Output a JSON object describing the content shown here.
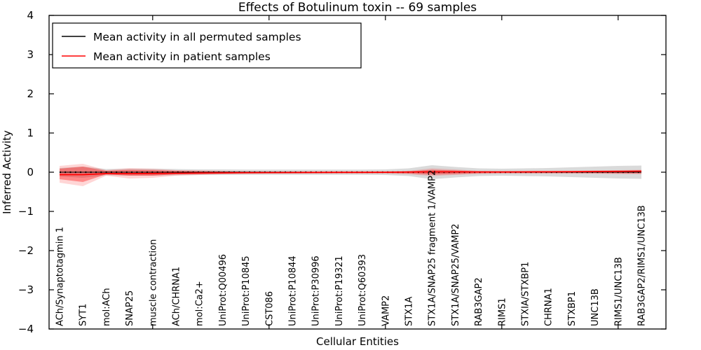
{
  "chart_data": {
    "type": "line",
    "title": "Effects of Botulinum toxin -- 69 samples",
    "xlabel": "Cellular Entities",
    "ylabel": "Inferred Activity",
    "ylim": [
      -4,
      4
    ],
    "yticks": [
      4,
      3,
      2,
      1,
      0,
      -1,
      -2,
      -3,
      -4
    ],
    "grid": false,
    "legend_position": "upper left",
    "legend": {
      "items": [
        {
          "label": "Mean activity in all permuted samples",
          "color": "#000000"
        },
        {
          "label": "Mean activity in patient samples",
          "color": "#ff0000"
        }
      ]
    },
    "categories": [
      "ACh/Synaptotagmin 1",
      "SYT1",
      "mol:ACh",
      "SNAP25",
      "muscle contraction",
      "ACh/CHRNA1",
      "mol:Ca2+",
      "UniProt:Q00496",
      "UniProt:P10845",
      "CST086",
      "UniProt:P10844",
      "UniProt:P30996",
      "UniProt:P19321",
      "UniProt:Q60393",
      "VAMP2",
      "STX1A",
      "STX1A/SNAP25 fragment 1/VAMP2",
      "STX1A/SNAP25/VAMP2",
      "RAB3GAP2",
      "RIMS1",
      "STXIA/STXBP1",
      "CHRNA1",
      "STXBP1",
      "UNC13B",
      "RIMS1/UNC13B",
      "RAB3GAP2/RIMS1/UNC13B"
    ],
    "x_major_tick_indices": [
      4,
      9,
      14,
      19,
      24
    ],
    "series": [
      {
        "name": "Mean activity in all permuted samples",
        "color": "#000000",
        "style": "solid-with-dots",
        "values": [
          0,
          0,
          0,
          0,
          0,
          0,
          0,
          0,
          0,
          0,
          0,
          0,
          0,
          0,
          0,
          0,
          0,
          0,
          0,
          0,
          0,
          0,
          0,
          0,
          0,
          0
        ]
      },
      {
        "name": "Mean activity in patient samples",
        "color": "#ff0000",
        "style": "solid",
        "values": [
          -0.063,
          -0.063,
          -0.036,
          -0.036,
          -0.032,
          -0.027,
          -0.021,
          -0.018,
          -0.014,
          -0.011,
          -0.009,
          -0.007,
          -0.005,
          -0.004,
          -0.002,
          0.004,
          0.009,
          0.009,
          0.007,
          0.007,
          0.009,
          0.011,
          0.014,
          0.018,
          0.021,
          0.027
        ]
      }
    ],
    "bands": [
      {
        "name": "permuted-samples-range",
        "color": "rgba(122,122,122,0.28)",
        "upper": [
          0.107,
          0.143,
          0.08,
          0.089,
          0.089,
          0.08,
          0.071,
          0.071,
          0.068,
          0.068,
          0.068,
          0.068,
          0.068,
          0.068,
          0.071,
          0.098,
          0.179,
          0.134,
          0.098,
          0.089,
          0.098,
          0.107,
          0.125,
          0.143,
          0.161,
          0.17
        ],
        "lower": [
          -0.107,
          -0.143,
          -0.08,
          -0.089,
          -0.089,
          -0.08,
          -0.071,
          -0.071,
          -0.068,
          -0.068,
          -0.068,
          -0.068,
          -0.068,
          -0.068,
          -0.071,
          -0.098,
          -0.179,
          -0.134,
          -0.098,
          -0.089,
          -0.098,
          -0.107,
          -0.125,
          -0.143,
          -0.161,
          -0.17
        ]
      },
      {
        "name": "patient-samples-outer-band",
        "color": "rgba(255,0,0,0.16)",
        "upper": [
          0.161,
          0.214,
          0.054,
          0.107,
          0.089,
          0.054,
          0.045,
          0.036,
          0.027,
          0.021,
          0.021,
          0.021,
          0.021,
          0.021,
          0.021,
          0.036,
          0.098,
          0.071,
          0.036,
          0.027,
          0.027,
          0.027,
          0.032,
          0.045,
          0.054,
          0.063
        ],
        "lower": [
          -0.268,
          -0.357,
          -0.089,
          -0.161,
          -0.143,
          -0.089,
          -0.071,
          -0.054,
          -0.045,
          -0.036,
          -0.036,
          -0.036,
          -0.036,
          -0.036,
          -0.036,
          -0.054,
          -0.098,
          -0.071,
          -0.045,
          -0.036,
          -0.036,
          -0.036,
          -0.036,
          -0.039,
          -0.045,
          -0.05
        ]
      },
      {
        "name": "patient-samples-inner-band",
        "color": "rgba(255,0,0,0.36)",
        "upper": [
          0.089,
          0.143,
          0.036,
          0.063,
          0.054,
          0.036,
          0.027,
          0.021,
          0.014,
          0.014,
          0.014,
          0.014,
          0.014,
          0.014,
          0.014,
          0.021,
          0.063,
          0.045,
          0.021,
          0.016,
          0.016,
          0.016,
          0.02,
          0.027,
          0.034,
          0.041
        ],
        "lower": [
          -0.179,
          -0.25,
          -0.054,
          -0.089,
          -0.089,
          -0.054,
          -0.045,
          -0.036,
          -0.023,
          -0.023,
          -0.023,
          -0.023,
          -0.023,
          -0.023,
          -0.023,
          -0.032,
          -0.063,
          -0.045,
          -0.027,
          -0.021,
          -0.021,
          -0.021,
          -0.023,
          -0.025,
          -0.029,
          -0.032
        ]
      }
    ]
  }
}
